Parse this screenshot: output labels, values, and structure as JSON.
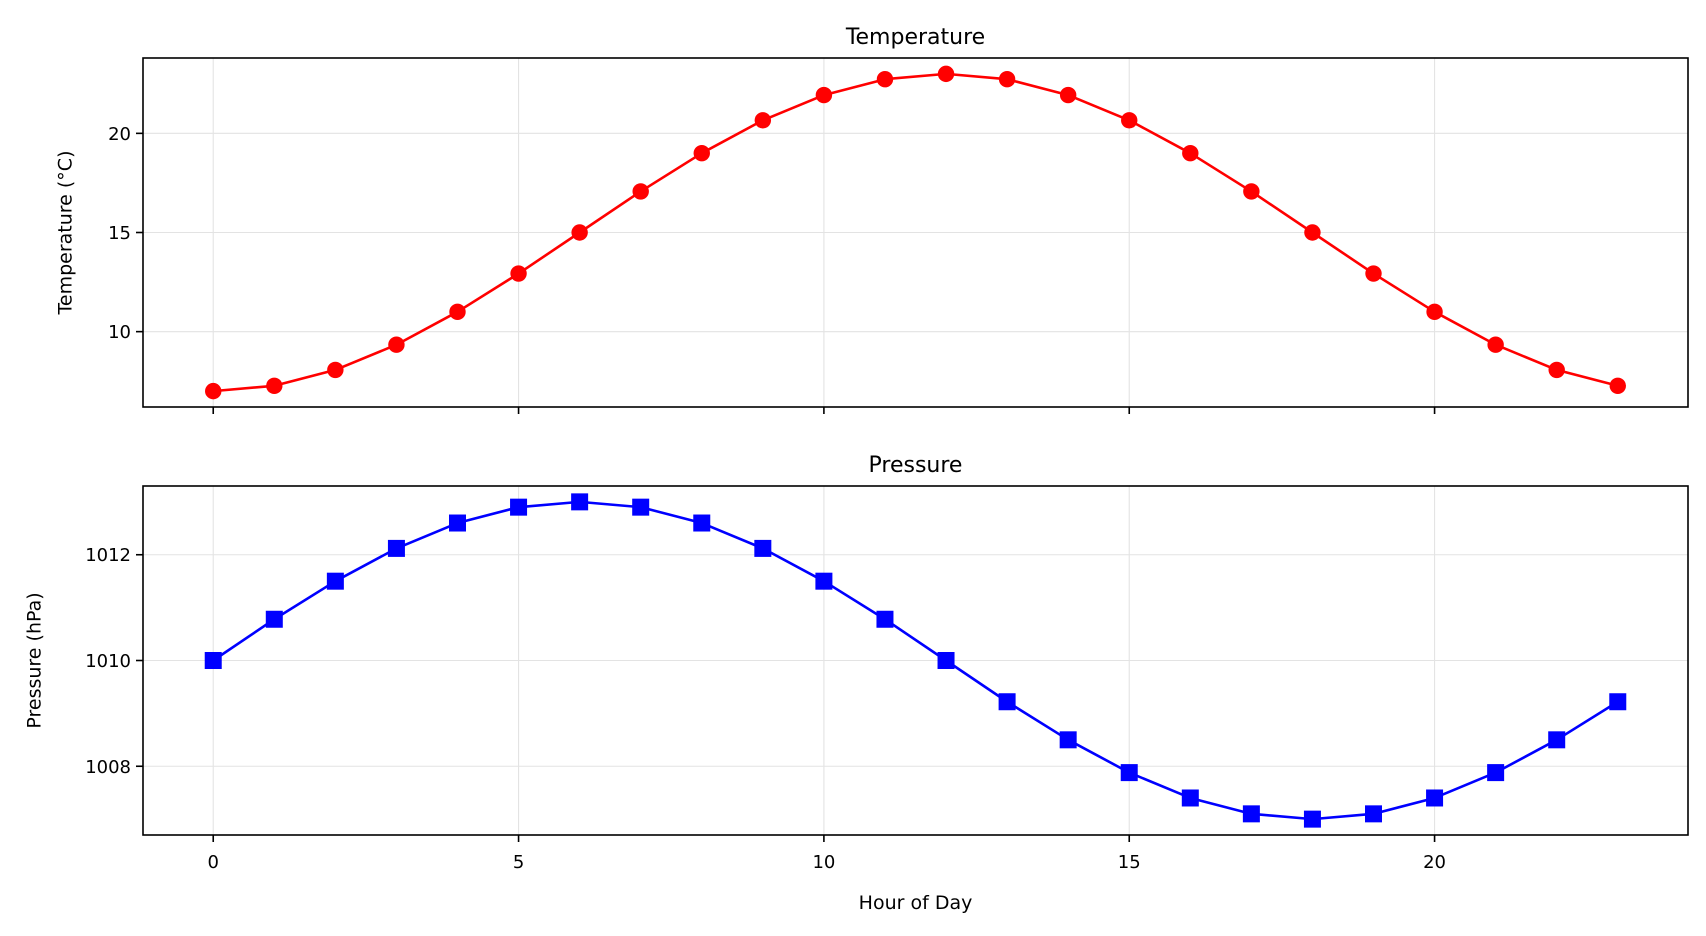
{
  "chart_data": [
    {
      "type": "line",
      "title": "Temperature",
      "xlabel": "",
      "ylabel": "Temperature (°C)",
      "xlim": [
        -1.15,
        24.15
      ],
      "ylim": [
        6.2,
        23.8
      ],
      "grid": true,
      "xticks": [
        0,
        5,
        10,
        15,
        20
      ],
      "xtick_labels_visible": false,
      "yticks": [
        10,
        15,
        20
      ],
      "ytick_labels": [
        "10",
        "15",
        "20"
      ],
      "series": [
        {
          "name": "Temperature",
          "color": "#ff0000",
          "marker": "circle",
          "x": [
            0,
            1,
            2,
            3,
            4,
            5,
            6,
            7,
            8,
            9,
            10,
            11,
            12,
            13,
            14,
            15,
            16,
            17,
            18,
            19,
            20,
            21,
            22,
            23
          ],
          "values": [
            7.0,
            7.27,
            8.07,
            9.34,
            11.0,
            12.93,
            15.0,
            17.07,
            19.0,
            20.66,
            21.93,
            22.73,
            23.0,
            22.73,
            21.93,
            20.66,
            19.0,
            17.07,
            15.0,
            12.93,
            11.0,
            9.34,
            8.07,
            7.27
          ]
        }
      ]
    },
    {
      "type": "line",
      "title": "Pressure",
      "xlabel": "Hour of Day",
      "ylabel": "Pressure (hPa)",
      "xlim": [
        -1.15,
        24.15
      ],
      "ylim": [
        1006.7,
        1013.3
      ],
      "grid": true,
      "xticks": [
        0,
        5,
        10,
        15,
        20
      ],
      "xtick_labels": [
        "0",
        "5",
        "10",
        "15",
        "20"
      ],
      "yticks": [
        1008,
        1010,
        1012
      ],
      "ytick_labels": [
        "1008",
        "1010",
        "1012"
      ],
      "series": [
        {
          "name": "Pressure",
          "color": "#0000ff",
          "marker": "square",
          "x": [
            0,
            1,
            2,
            3,
            4,
            5,
            6,
            7,
            8,
            9,
            10,
            11,
            12,
            13,
            14,
            15,
            16,
            17,
            18,
            19,
            20,
            21,
            22,
            23
          ],
          "values": [
            1010.0,
            1010.78,
            1011.5,
            1012.12,
            1012.6,
            1012.9,
            1013.0,
            1012.9,
            1012.6,
            1012.12,
            1011.5,
            1010.78,
            1010.0,
            1009.22,
            1008.5,
            1007.88,
            1007.4,
            1007.1,
            1007.0,
            1007.1,
            1007.4,
            1007.88,
            1008.5,
            1009.22
          ]
        }
      ]
    }
  ]
}
